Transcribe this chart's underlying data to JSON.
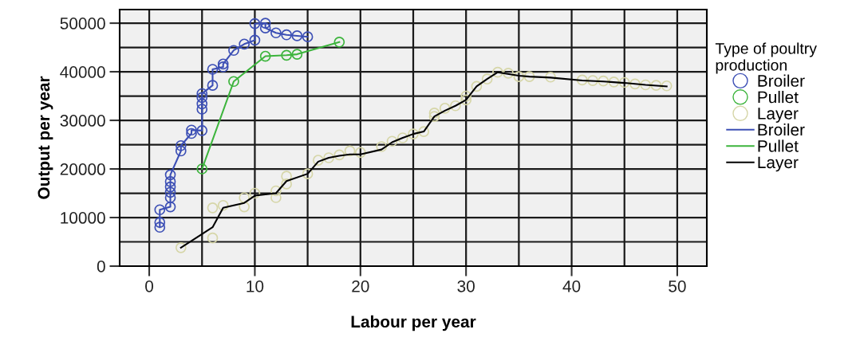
{
  "chart_data": {
    "type": "scatter",
    "xlabel": "Labour per year",
    "ylabel": "Output per year",
    "legend_title": "Type of poultry\nproduction",
    "xlim": [
      -2.8,
      52.8
    ],
    "ylim": [
      0,
      52800
    ],
    "xticks": [
      0,
      10,
      20,
      30,
      40,
      50
    ],
    "yticks": [
      0,
      10000,
      20000,
      30000,
      40000,
      50000
    ],
    "grid": true,
    "legend": "right",
    "series": [
      {
        "name": "Broiler",
        "marker": "circle",
        "color": "#3c4fb5",
        "x": [
          1,
          1,
          1,
          2,
          2,
          2,
          2,
          2,
          2,
          3,
          3,
          4,
          4,
          5,
          5,
          5,
          5,
          5,
          6,
          6,
          7,
          7,
          8,
          9,
          10,
          10,
          11,
          11,
          12,
          13,
          14,
          15
        ],
        "values": [
          8000,
          9000,
          11600,
          12200,
          14100,
          15200,
          16300,
          17400,
          18800,
          23700,
          24800,
          27300,
          28000,
          27900,
          32300,
          33400,
          34700,
          35500,
          37200,
          40500,
          41000,
          41600,
          44400,
          45700,
          46500,
          49900,
          50000,
          49000,
          48000,
          47600,
          47400,
          47200
        ]
      },
      {
        "name": "Pullet",
        "marker": "circle",
        "color": "#3cb43c",
        "x": [
          5,
          8,
          11,
          13,
          14,
          18
        ],
        "values": [
          20000,
          38000,
          43200,
          43400,
          43600,
          46100
        ]
      },
      {
        "name": "Layer",
        "marker": "circle",
        "color": "#d6d6a8",
        "x": [
          3,
          6,
          6,
          7,
          9,
          9,
          10,
          12,
          12,
          13,
          13,
          15,
          16,
          17,
          18,
          19,
          20,
          22,
          23,
          24,
          25,
          26,
          27,
          27,
          28,
          29,
          30,
          30,
          31,
          32,
          33,
          34,
          35,
          36,
          38,
          41,
          42,
          43,
          44,
          45,
          46,
          47,
          48,
          49
        ],
        "values": [
          3800,
          5800,
          12000,
          12500,
          12200,
          14100,
          15000,
          15500,
          14100,
          18500,
          16900,
          19000,
          21800,
          22300,
          22900,
          23700,
          23400,
          24600,
          25700,
          26400,
          27200,
          27700,
          30800,
          31500,
          32500,
          33000,
          34200,
          35000,
          37000,
          38500,
          39900,
          39700,
          39000,
          39000,
          38900,
          38300,
          38200,
          38100,
          37900,
          37800,
          37500,
          37300,
          37200,
          37100
        ]
      },
      {
        "name": "Broiler",
        "type": "line",
        "marker": "none",
        "line_style": "solid",
        "color": "#3c4fb5",
        "x": [
          1,
          1,
          1,
          2,
          2,
          2,
          2,
          2,
          2,
          3,
          3,
          4,
          4,
          5,
          5,
          5,
          5,
          5,
          6,
          6,
          7,
          7,
          8,
          9,
          10,
          10,
          11,
          11,
          12,
          13,
          14,
          15
        ],
        "values": [
          8000,
          9000,
          11600,
          12200,
          14100,
          15200,
          16300,
          17400,
          18800,
          23700,
          24800,
          27300,
          28000,
          27900,
          32300,
          33400,
          34700,
          35500,
          37200,
          40500,
          41000,
          41600,
          44400,
          45700,
          46500,
          49900,
          50000,
          49000,
          48000,
          47600,
          47400,
          47200
        ]
      },
      {
        "name": "Pullet",
        "type": "line",
        "marker": "none",
        "line_style": "solid",
        "color": "#3cb43c",
        "x": [
          5,
          8,
          11,
          13,
          14,
          18
        ],
        "values": [
          20000,
          38000,
          43200,
          43400,
          43600,
          46100
        ]
      },
      {
        "name": "Layer",
        "type": "line",
        "marker": "none",
        "line_style": "solid",
        "color": "#000000",
        "x": [
          3,
          6,
          7,
          9,
          10,
          12,
          13,
          15,
          16,
          17,
          18,
          19,
          20,
          22,
          23,
          24,
          25,
          26,
          27,
          28,
          29,
          30,
          31,
          32,
          33,
          35,
          36,
          38,
          41,
          43,
          45,
          47,
          49
        ],
        "values": [
          3800,
          8000,
          12000,
          13000,
          14500,
          15000,
          17500,
          19000,
          21500,
          22300,
          22700,
          23000,
          23000,
          24000,
          25500,
          26400,
          27200,
          27700,
          30800,
          32000,
          33000,
          34200,
          37000,
          38500,
          39900,
          39200,
          39000,
          38800,
          38200,
          38000,
          37700,
          37300,
          37000
        ]
      }
    ]
  }
}
